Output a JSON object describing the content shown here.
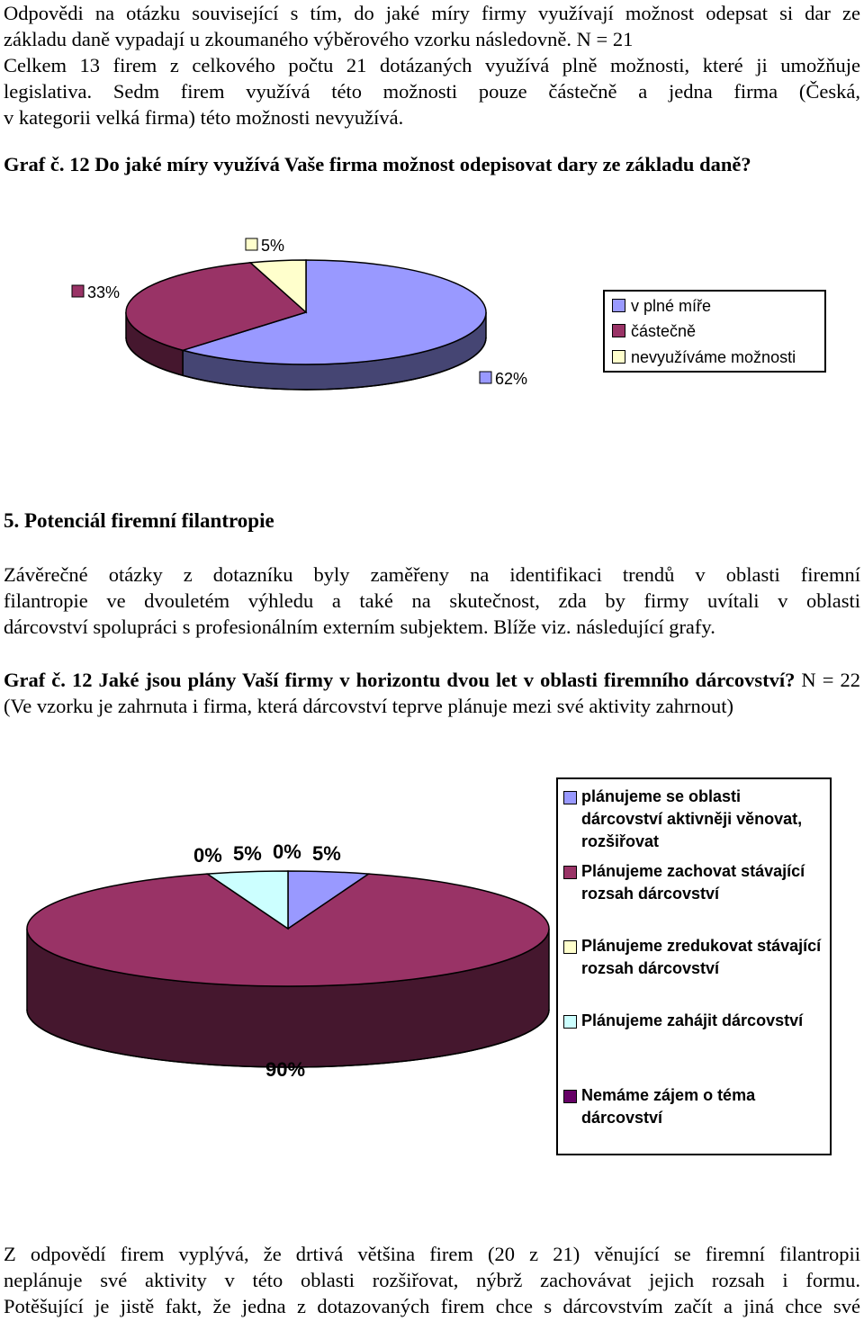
{
  "intro": {
    "lines": [
      "Odpovědi na otázku související s tím, do jaké míry firmy využívají možnost odepsat si dar ze",
      "základu daně vypadají u zkoumaného výběrového vzorku následovně. N = 21",
      "Celkem 13 firem z celkového počtu 21 dotázaných využívá plně možnosti, které ji umožňuje",
      "legislativa. Sedm firem využívá této možnosti pouze částečně a jedna firma (Česká,",
      "v kategorii velká firma) této možnosti nevyužívá."
    ]
  },
  "graf1": {
    "caption": "Graf č. 12 Do jaké míry využívá Vaše firma možnost odepisovat dary ze základu daně?"
  },
  "section5": {
    "heading": "5. Potenciál firemní filantropie",
    "lines": [
      "Závěrečné otázky z dotazníku byly zaměřeny na identifikaci trendů v oblasti firemní",
      "filantropie ve dvouletém výhledu a také na skutečnost, zda by firmy uvítali v oblasti",
      "dárcovství spolupráci s profesionálním externím subjektem. Blíže viz. následující grafy."
    ]
  },
  "graf2": {
    "caption_bold": "Graf č. 12 Jaké jsou plány Vaší firmy v horizontu dvou let v oblasti firemního dárcovství?",
    "caption_rest": " N = 22 (Ve vzorku je zahrnuta i firma, která dárcovství teprve plánuje mezi své aktivity zahrnout)"
  },
  "chart_data": [
    {
      "type": "pie",
      "categories": [
        "v plné míře",
        "částečně",
        "nevyužíváme možnosti"
      ],
      "values": [
        62,
        33,
        5
      ],
      "labels": [
        "62%",
        "33%",
        "5%"
      ],
      "colors": [
        "#9999ff",
        "#993366",
        "#ffffcc"
      ],
      "legend_position": "right"
    },
    {
      "type": "pie",
      "categories": [
        "plánujeme se oblasti dárcovství aktivněji věnovat, rozšiřovat",
        "Plánujeme zachovat stávající rozsah dárcovství",
        "Plánujeme zredukovat stávající rozsah dárcovství",
        "Plánujeme zahájit dárcovství",
        "Nemáme zájem o téma dárcovství"
      ],
      "values": [
        5,
        90,
        0,
        5,
        0
      ],
      "labels": [
        "5%",
        "90%",
        "0%",
        "5%",
        "0%"
      ],
      "colors": [
        "#9999ff",
        "#993366",
        "#ffffcc",
        "#ccffff",
        "#660066"
      ],
      "legend_position": "right"
    }
  ],
  "conclusion": {
    "lines": [
      "Z odpovědí firem vyplývá, že drtivá většina firem (20 z 21) věnující se firemní filantropii",
      "neplánuje své aktivity v této oblasti rozšiřovat, nýbrž zachovávat jejich rozsah i formu.",
      "Potěšující je jistě fakt, že jedna z dotazovaných firem chce s dárcovstvím začít a jiná chce své"
    ]
  }
}
